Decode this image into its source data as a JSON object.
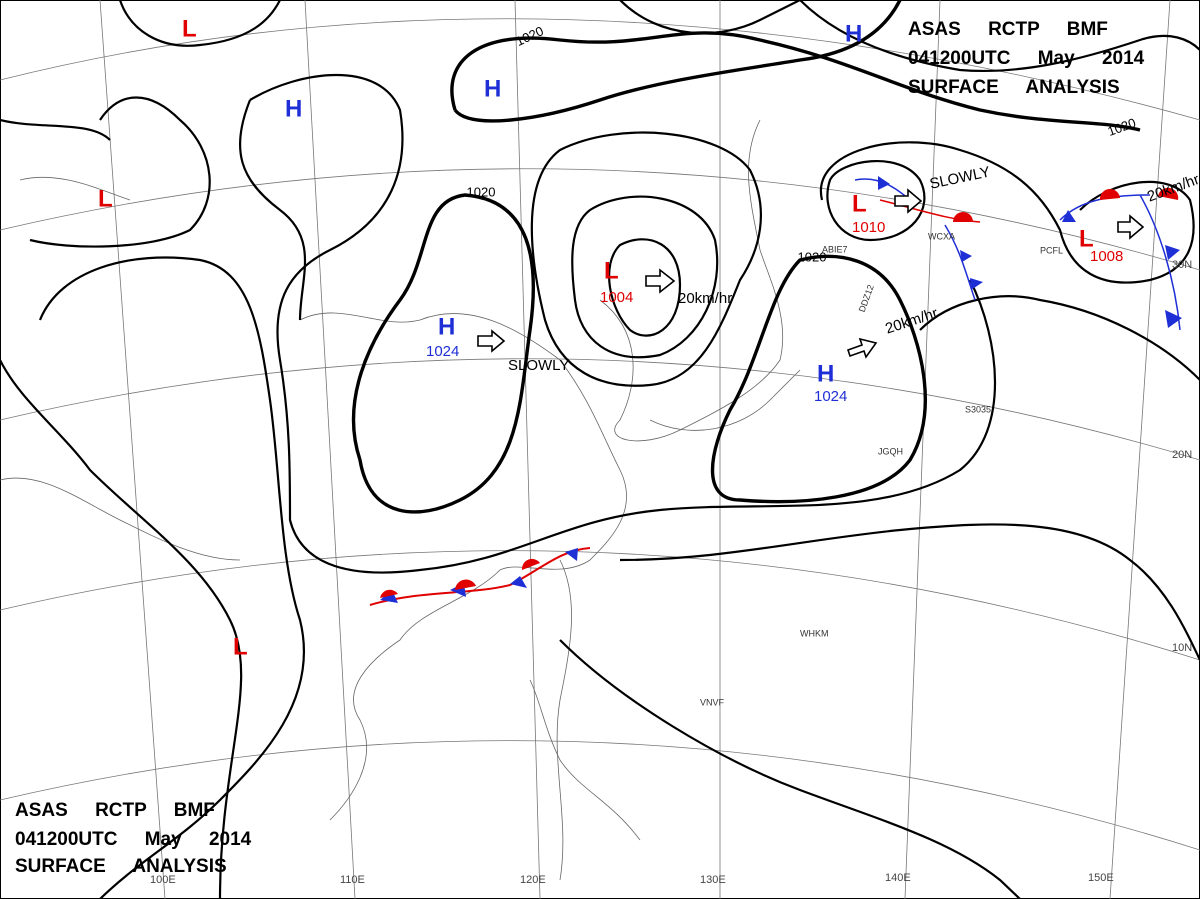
{
  "header": {
    "line1": "ASAS RCTP BMF",
    "line2": "041200UTC May 2014",
    "line3": "SURFACE ANALYSIS"
  },
  "pressure_centers": [
    {
      "label": "L"
    },
    {
      "label": "H"
    },
    {
      "label": "L"
    },
    {
      "label": "H"
    },
    {
      "label": "H"
    },
    {
      "label": "H",
      "value": "1024"
    },
    {
      "label": "L",
      "value": "1004"
    },
    {
      "label": "H",
      "value": "1024"
    },
    {
      "label": "L",
      "value": "1010"
    },
    {
      "label": "L",
      "value": "1008"
    },
    {
      "label": "L"
    }
  ],
  "isobar_labels": [
    "1020",
    "1020",
    "1020",
    "1020"
  ],
  "motion_labels": [
    "SLOWLY",
    "20km/hr",
    "20km/hr",
    "SLOWLY",
    "20km/hr"
  ],
  "longitudes": [
    "100E",
    "110E",
    "120E",
    "130E",
    "140E",
    "150E"
  ],
  "latitudes": [
    "10N",
    "20N",
    "30N"
  ],
  "station_ids": [
    "ABIE7",
    "DDZ12",
    "JGQH",
    "WHKM",
    "VNVF",
    "WCXA",
    "PCFL",
    "S3035"
  ]
}
